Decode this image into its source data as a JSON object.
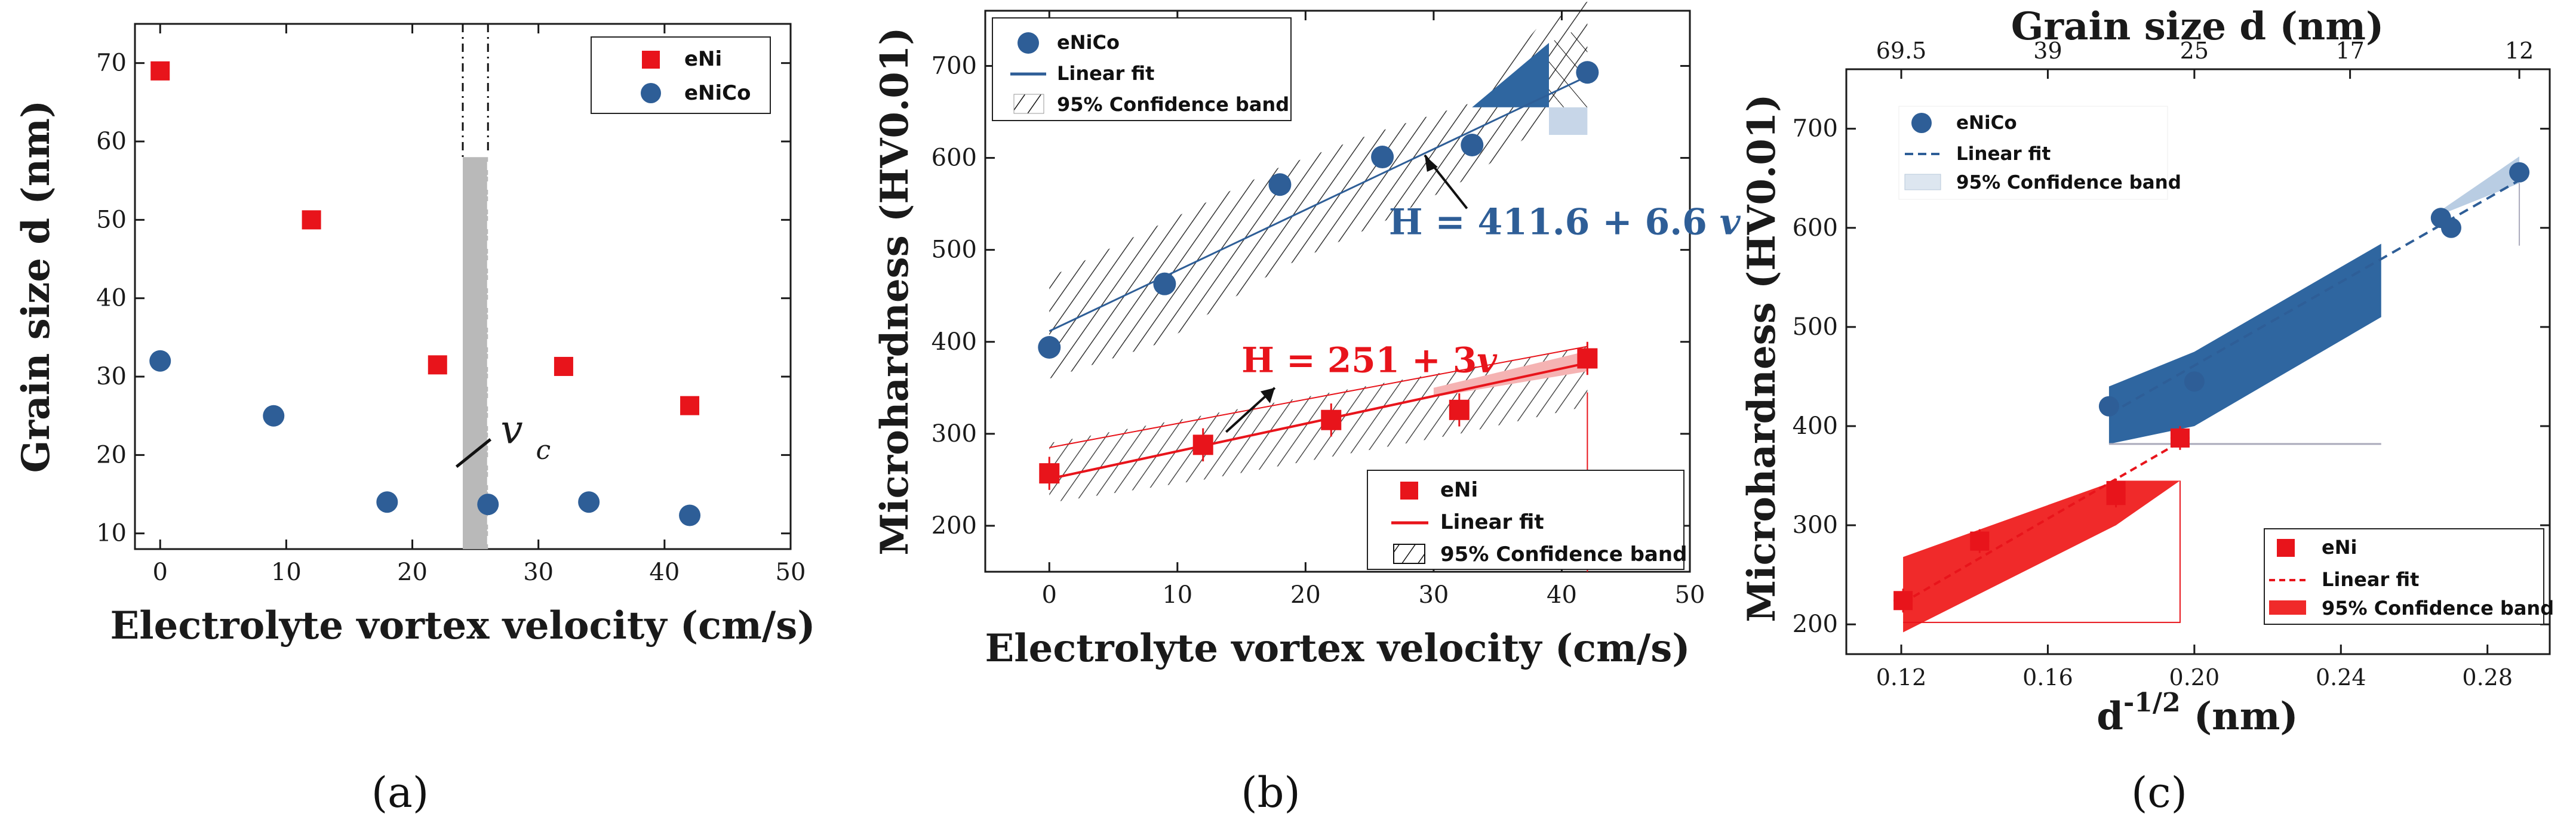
{
  "colors": {
    "ni": "#e8141b",
    "co": "#2e5e97",
    "grey": "#b9b9b9",
    "band_co": "#2f66a0",
    "band_ni": "#f02a2a"
  },
  "panels": {
    "a": "(a)",
    "b": "(b)",
    "c": "(c)"
  },
  "chart_data": [
    {
      "type": "scatter",
      "id": "a",
      "title": "",
      "xlabel": "Electrolyte vortex velocity (cm/s)",
      "ylabel": "Grain size d (nm)",
      "xlim": [
        -2,
        50
      ],
      "ylim": [
        8,
        75
      ],
      "xticks": [
        "0",
        "10",
        "20",
        "30",
        "40",
        "50"
      ],
      "yticks": [
        "10",
        "20",
        "30",
        "40",
        "50",
        "60",
        "70"
      ],
      "legend": {
        "position": "top-right",
        "entries": [
          "eNi",
          "eNiCo"
        ]
      },
      "series": [
        {
          "name": "eNi",
          "marker": "square",
          "x": [
            0,
            12,
            22,
            32,
            42
          ],
          "y": [
            69,
            50,
            31.5,
            31.3,
            26.3
          ]
        },
        {
          "name": "eNiCo",
          "marker": "circle",
          "x": [
            0,
            9,
            18,
            26,
            34,
            42
          ],
          "y": [
            32,
            25,
            14,
            13.7,
            14,
            12.3
          ]
        }
      ],
      "annotation": {
        "label": "v",
        "subscript": "c",
        "region_x": [
          24,
          26
        ],
        "region_top_y": 58
      }
    },
    {
      "type": "scatter",
      "id": "b",
      "xlabel": "Electrolyte vortex velocity (cm/s)",
      "ylabel": "Microhardness (HV0.01)",
      "xlim": [
        -5,
        50
      ],
      "ylim": [
        150,
        760
      ],
      "xticks": [
        "0",
        "10",
        "20",
        "30",
        "40",
        "50"
      ],
      "yticks": [
        "200",
        "300",
        "400",
        "500",
        "600",
        "700"
      ],
      "legend_co": {
        "position": "top-left",
        "entries": [
          "eNiCo",
          "Linear fit",
          "95% Confidence band"
        ]
      },
      "legend_ni": {
        "position": "bottom-right",
        "entries": [
          "eNi",
          "Linear fit",
          "95% Confidence band"
        ]
      },
      "series": [
        {
          "name": "eNiCo",
          "marker": "circle",
          "x": [
            0,
            9,
            18,
            26,
            33,
            42
          ],
          "y": [
            394,
            463,
            571,
            601,
            614,
            693
          ],
          "fit": "H = 411.6 + 6.6 v",
          "fit_intercept": 411.6,
          "fit_slope": 6.6
        },
        {
          "name": "eNi",
          "marker": "square",
          "x": [
            0,
            12,
            22,
            32,
            42
          ],
          "y": [
            257,
            288,
            315,
            326,
            382
          ],
          "fit": "H = 251 + 3v",
          "fit_intercept": 251,
          "fit_slope": 3
        }
      ],
      "eq_co": {
        "main": "H = 411.6 + 6.6 ",
        "var": "v"
      },
      "eq_ni": {
        "main": "H = 251 + 3",
        "var": "v"
      }
    },
    {
      "type": "scatter",
      "id": "c",
      "xlabel": "d",
      "xlabel_sup": "-1/2",
      "xlabel_unit": " (nm)",
      "ylabel": "Microhardness (HV0.01)",
      "top_xlabel": "Grain size d (nm)",
      "xlim": [
        0.105,
        0.297
      ],
      "ylim": [
        170,
        760
      ],
      "xticks": [
        "0.12",
        "0.16",
        "0.20",
        "0.24",
        "0.28"
      ],
      "yticks": [
        "200",
        "300",
        "400",
        "500",
        "600",
        "700"
      ],
      "top_ticks": [
        {
          "label": "69.5",
          "x": 0.12
        },
        {
          "label": "39",
          "x": 0.16
        },
        {
          "label": "25",
          "x": 0.2
        },
        {
          "label": "17",
          "x": 0.2425
        },
        {
          "label": "12",
          "x": 0.2887
        }
      ],
      "legend_co": {
        "position": "top-left",
        "entries": [
          "eNiCo",
          "Linear fit",
          "95% Confidence band"
        ]
      },
      "legend_ni": {
        "position": "bottom-right",
        "entries": [
          "eNi",
          "Linear fit",
          "95% Confidence band"
        ]
      },
      "series": [
        {
          "name": "eNiCo",
          "marker": "circle",
          "x": [
            0.1767,
            0.2,
            0.2673,
            0.2701,
            0.2887
          ],
          "y": [
            420,
            445,
            610,
            600,
            656
          ]
        },
        {
          "name": "eNi",
          "marker": "square",
          "x": [
            0.1205,
            0.1414,
            0.1786,
            0.1786,
            0.1961
          ],
          "y": [
            224,
            284,
            330,
            335,
            388
          ]
        }
      ]
    }
  ]
}
